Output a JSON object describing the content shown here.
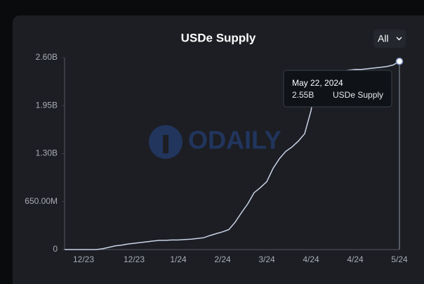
{
  "chart_data": {
    "type": "line",
    "title": "USDe Supply",
    "range_selector": "All",
    "watermark": "ODAILY",
    "categories": [
      null,
      null,
      null,
      "12/23",
      null,
      null,
      null,
      null,
      null,
      null,
      null,
      "12/23",
      null,
      null,
      null,
      null,
      null,
      null,
      "1/24",
      null,
      null,
      null,
      null,
      null,
      null,
      "2/24",
      null,
      null,
      null,
      null,
      null,
      null,
      "3/24",
      null,
      null,
      null,
      null,
      null,
      null,
      "4/24",
      null,
      null,
      null,
      null,
      null,
      null,
      "4/24",
      null,
      null,
      null,
      null,
      null,
      null,
      "5/24"
    ],
    "series": [
      {
        "name": "USDe Supply",
        "color": "#c9d4e8",
        "values": [
          0,
          0,
          0,
          0,
          0,
          0,
          10,
          30,
          50,
          60,
          75,
          85,
          95,
          105,
          115,
          125,
          125,
          130,
          130,
          135,
          140,
          150,
          160,
          190,
          215,
          240,
          270,
          370,
          500,
          620,
          770,
          840,
          920,
          1100,
          1230,
          1330,
          1390,
          1470,
          1570,
          1880,
          2380,
          2400,
          2410,
          2420,
          2420,
          2430,
          2440,
          2440,
          2450,
          2460,
          2470,
          2480,
          2500,
          2550
        ]
      }
    ],
    "ylim": [
      0,
      2600
    ],
    "yticks": [
      0,
      {
        "value": 650,
        "label": "650.00M"
      },
      {
        "value": 1300,
        "label": "1.30B"
      },
      {
        "value": 1950,
        "label": "1.95B"
      },
      {
        "value": 2600,
        "label": "2.60B"
      }
    ],
    "tooltip": {
      "date": "May 22, 2024",
      "value": "2.55B"
    }
  }
}
